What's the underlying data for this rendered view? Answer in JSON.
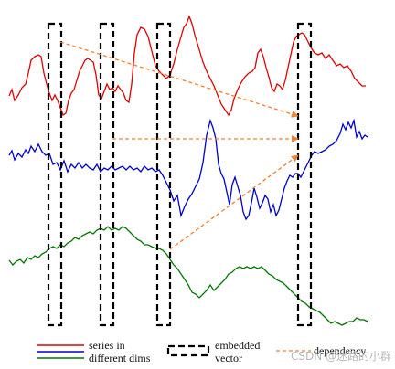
{
  "legend": {
    "series_label_line1": "series in",
    "series_label_line2": "different dims",
    "vector_label_line1": "embedded",
    "vector_label_line2": "vector",
    "dependency_label": "dependency"
  },
  "watermark": "CSDN @迷路的小群",
  "colors": {
    "series_red": "#e00000",
    "series_blue": "#0000cc",
    "series_green": "#007700",
    "box": "#000000",
    "arrow": "#f08030"
  }
}
